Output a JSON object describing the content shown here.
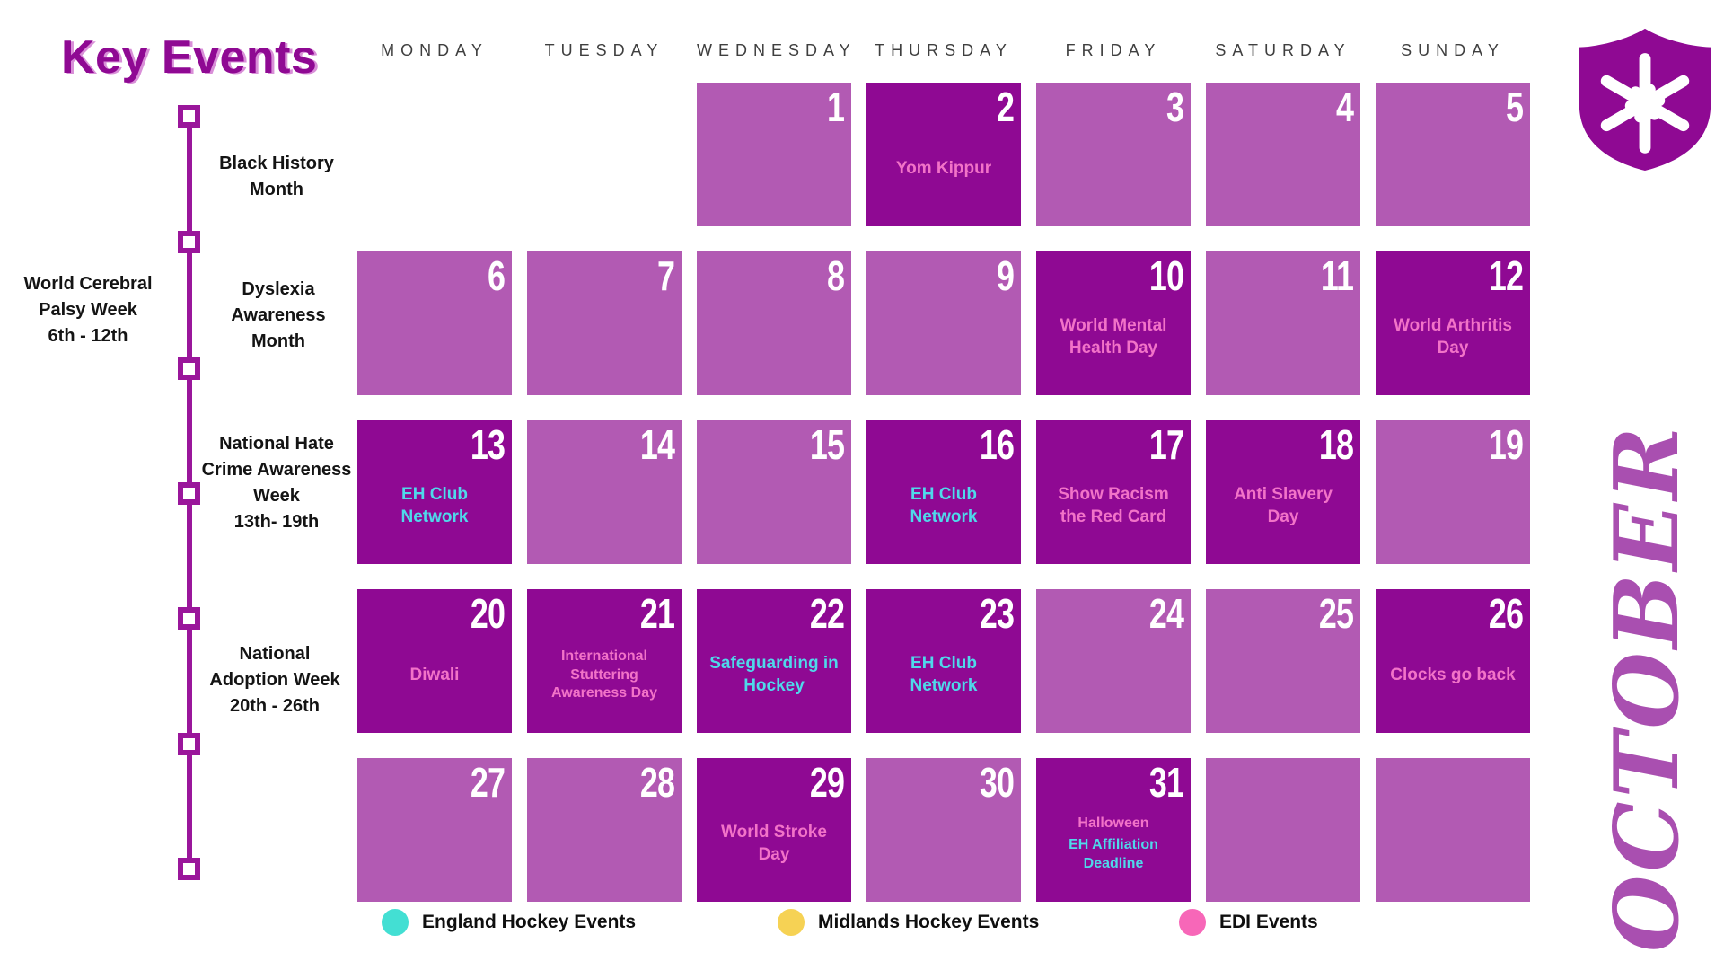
{
  "page": {
    "title": "Key Events",
    "month": "OCTOBER"
  },
  "weekday_headers": [
    "MONDAY",
    "TUESDAY",
    "WEDNESDAY",
    "THURSDAY",
    "FRIDAY",
    "SATURDAY",
    "SUNDAY"
  ],
  "timeline_labels": [
    {
      "lines": [
        "Black History",
        "Month"
      ],
      "side": "right"
    },
    {
      "lines": [
        "World Cerebral",
        "Palsy Week",
        "6th - 12th"
      ],
      "side": "left"
    },
    {
      "lines": [
        "Dyslexia",
        "Awareness",
        "Month"
      ],
      "side": "right"
    },
    {
      "lines": [
        "National Hate",
        "Crime Awareness",
        "Week",
        "13th- 19th"
      ],
      "side": "right"
    },
    {
      "lines": [
        "National",
        "Adoption Week",
        "20th - 26th"
      ],
      "side": "right"
    }
  ],
  "weeks": [
    [
      null,
      null,
      {
        "day": "1"
      },
      {
        "day": "2",
        "dark": true,
        "events": [
          {
            "text": "Yom Kippur",
            "color": "pink"
          }
        ]
      },
      {
        "day": "3"
      },
      {
        "day": "4"
      },
      {
        "day": "5"
      }
    ],
    [
      {
        "day": "6"
      },
      {
        "day": "7"
      },
      {
        "day": "8"
      },
      {
        "day": "9"
      },
      {
        "day": "10",
        "dark": true,
        "events": [
          {
            "text": "World Mental Health Day",
            "color": "pink"
          }
        ]
      },
      {
        "day": "11"
      },
      {
        "day": "12",
        "dark": true,
        "events": [
          {
            "text": "World Arthritis Day",
            "color": "pink"
          }
        ]
      }
    ],
    [
      {
        "day": "13",
        "dark": true,
        "events": [
          {
            "text": "EH Club Network",
            "color": "cyan"
          }
        ]
      },
      {
        "day": "14"
      },
      {
        "day": "15"
      },
      {
        "day": "16",
        "dark": true,
        "events": [
          {
            "text": "EH Club Network",
            "color": "cyan"
          }
        ]
      },
      {
        "day": "17",
        "dark": true,
        "events": [
          {
            "text": "Show Racism the Red Card",
            "color": "pink"
          }
        ]
      },
      {
        "day": "18",
        "dark": true,
        "events": [
          {
            "text": "Anti Slavery Day",
            "color": "pink"
          }
        ]
      },
      {
        "day": "19"
      }
    ],
    [
      {
        "day": "20",
        "dark": true,
        "events": [
          {
            "text": "Diwali",
            "color": "pink"
          }
        ]
      },
      {
        "day": "21",
        "dark": true,
        "events": [
          {
            "text": "International Stuttering Awareness Day",
            "color": "pink"
          }
        ]
      },
      {
        "day": "22",
        "dark": true,
        "events": [
          {
            "text": "Safeguarding in Hockey",
            "color": "cyan"
          }
        ]
      },
      {
        "day": "23",
        "dark": true,
        "events": [
          {
            "text": "EH Club Network",
            "color": "cyan"
          }
        ]
      },
      {
        "day": "24"
      },
      {
        "day": "25"
      },
      {
        "day": "26",
        "dark": true,
        "events": [
          {
            "text": "Clocks go back",
            "color": "pink"
          }
        ]
      }
    ],
    [
      {
        "day": "27"
      },
      {
        "day": "28"
      },
      {
        "day": "29",
        "dark": true,
        "events": [
          {
            "text": "World Stroke Day",
            "color": "pink"
          }
        ]
      },
      {
        "day": "30"
      },
      {
        "day": "31",
        "dark": true,
        "events": [
          {
            "text": "Halloween",
            "color": "pink"
          },
          {
            "text": "EH Affiliation Deadline",
            "color": "cyan"
          }
        ]
      },
      {
        "day": ""
      },
      {
        "day": ""
      }
    ]
  ],
  "legend": [
    {
      "label": "England Hockey Events",
      "color": "#43DFD3"
    },
    {
      "label": "Midlands Hockey Events",
      "color": "#F6D254"
    },
    {
      "label": "EDI Events",
      "color": "#F767B8"
    }
  ],
  "colors": {
    "dark_cell": "#8F0993",
    "light_cell": "#B25AB3",
    "pink_text": "#F273C8",
    "cyan_text": "#4FD9EA",
    "timeline": "#9A169B",
    "month_text": "#A94FB0",
    "title": "#8F0993"
  }
}
